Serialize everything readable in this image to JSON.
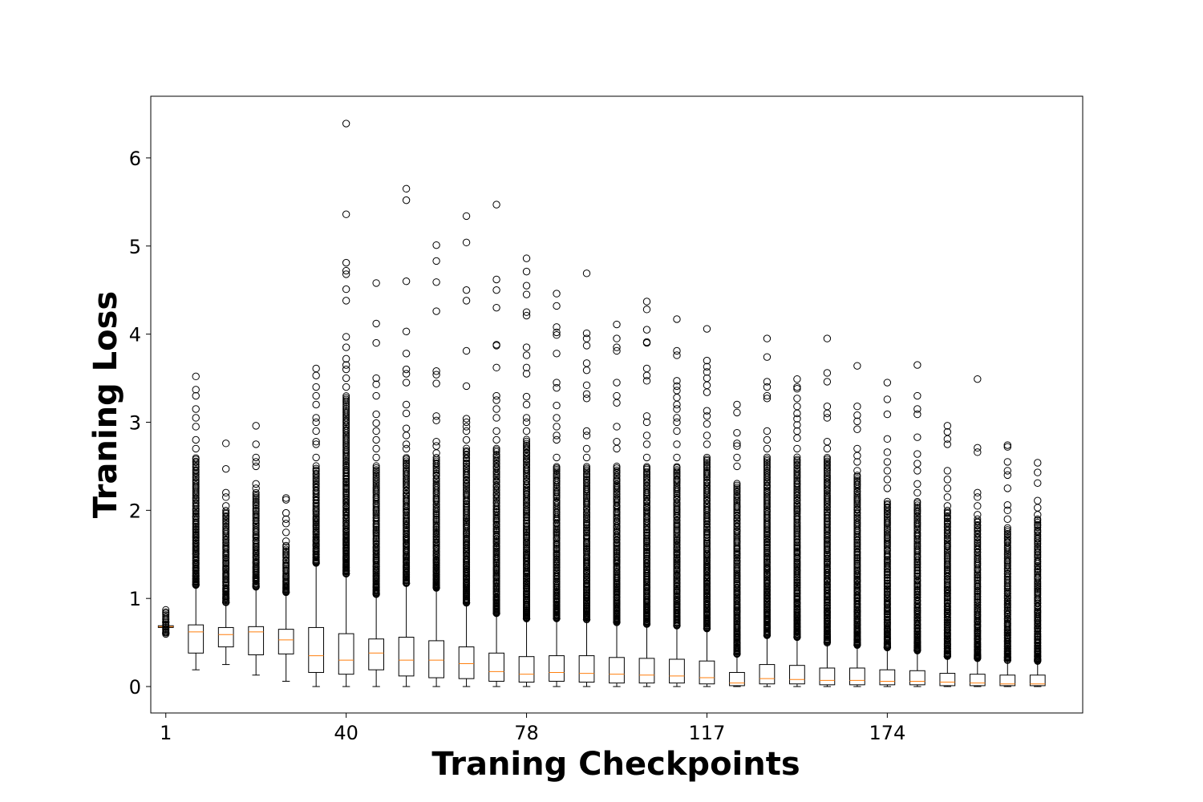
{
  "chart_data": {
    "type": "box",
    "xlabel": "Traning Checkpoints",
    "ylabel": "Traning Loss",
    "ylim": [
      -0.3,
      6.7
    ],
    "yticks": [
      0,
      1,
      2,
      3,
      4,
      5,
      6
    ],
    "xticks": [
      {
        "label": "1",
        "position": 0
      },
      {
        "label": "40",
        "position": 6
      },
      {
        "label": "78",
        "position": 12
      },
      {
        "label": "117",
        "position": 18
      },
      {
        "label": "174",
        "position": 24
      }
    ],
    "grid": false,
    "colors": {
      "box": "#000000",
      "median": "#ff7f0e",
      "outlier": "#000000"
    },
    "series": [
      {
        "position": 1,
        "whislo": 0.6,
        "q1": 0.67,
        "med": 0.68,
        "q3": 0.69,
        "whishi": 0.73,
        "outlier_range": [
          0.6,
          0.87
        ],
        "fliers": []
      },
      {
        "position": 2,
        "whislo": 0.19,
        "q1": 0.38,
        "med": 0.62,
        "q3": 0.7,
        "whishi": 1.15,
        "outlier_range": [
          1.15,
          2.6
        ],
        "fliers": [
          2.7,
          2.8,
          2.95,
          3.05,
          3.15,
          3.3,
          3.37,
          3.52
        ]
      },
      {
        "position": 3,
        "whislo": 0.25,
        "q1": 0.45,
        "med": 0.59,
        "q3": 0.67,
        "whishi": 0.95,
        "outlier_range": [
          0.95,
          2.0
        ],
        "fliers": [
          2.05,
          2.15,
          2.2,
          2.47,
          2.76
        ]
      },
      {
        "position": 4,
        "whislo": 0.13,
        "q1": 0.36,
        "med": 0.62,
        "q3": 0.68,
        "whishi": 1.13,
        "outlier_range": [
          1.13,
          2.2
        ],
        "fliers": [
          2.25,
          2.3,
          2.5,
          2.55,
          2.6,
          2.75,
          2.96
        ]
      },
      {
        "position": 5,
        "whislo": 0.06,
        "q1": 0.37,
        "med": 0.53,
        "q3": 0.65,
        "whishi": 1.07,
        "outlier_range": [
          1.07,
          1.6
        ],
        "fliers": [
          1.65,
          1.75,
          1.85,
          1.9,
          1.97,
          2.12,
          2.14
        ]
      },
      {
        "position": 6,
        "whislo": 0.0,
        "q1": 0.16,
        "med": 0.35,
        "q3": 0.67,
        "whishi": 1.4,
        "outlier_range": [
          1.4,
          2.5
        ],
        "fliers": [
          2.6,
          2.75,
          2.78,
          2.9,
          3.0,
          3.05,
          3.2,
          3.3,
          3.4,
          3.53,
          3.61
        ]
      },
      {
        "position": 7,
        "whislo": 0.0,
        "q1": 0.14,
        "med": 0.3,
        "q3": 0.6,
        "whishi": 1.28,
        "outlier_range": [
          1.28,
          3.3
        ],
        "fliers": [
          3.4,
          3.5,
          3.6,
          3.65,
          3.72,
          3.85,
          3.97,
          4.38,
          4.51,
          4.68,
          4.72,
          4.81,
          5.36,
          6.39
        ]
      },
      {
        "position": 8,
        "whislo": 0.0,
        "q1": 0.19,
        "med": 0.38,
        "q3": 0.54,
        "whishi": 1.05,
        "outlier_range": [
          1.05,
          2.5
        ],
        "fliers": [
          2.6,
          2.7,
          2.8,
          2.9,
          2.99,
          3.09,
          3.3,
          3.43,
          3.5,
          3.9,
          4.12,
          4.58
        ]
      },
      {
        "position": 9,
        "whislo": 0.0,
        "q1": 0.12,
        "med": 0.3,
        "q3": 0.56,
        "whishi": 1.17,
        "outlier_range": [
          1.17,
          2.6
        ],
        "fliers": [
          2.7,
          2.75,
          2.85,
          2.93,
          3.1,
          3.2,
          3.45,
          3.55,
          3.6,
          3.78,
          4.03,
          4.6,
          5.52,
          5.65
        ]
      },
      {
        "position": 10,
        "whislo": 0.0,
        "q1": 0.1,
        "med": 0.3,
        "q3": 0.52,
        "whishi": 1.12,
        "outlier_range": [
          1.12,
          2.6
        ],
        "fliers": [
          2.65,
          2.73,
          2.78,
          3.02,
          3.07,
          3.44,
          3.54,
          3.58,
          4.26,
          4.59,
          4.83,
          5.01
        ]
      },
      {
        "position": 11,
        "whislo": 0.0,
        "q1": 0.09,
        "med": 0.26,
        "q3": 0.45,
        "whishi": 0.95,
        "outlier_range": [
          0.95,
          2.7
        ],
        "fliers": [
          2.8,
          2.9,
          2.95,
          3.0,
          3.04,
          3.41,
          3.81,
          4.38,
          4.5,
          5.04,
          5.34
        ]
      },
      {
        "position": 12,
        "whislo": 0.0,
        "q1": 0.06,
        "med": 0.17,
        "q3": 0.38,
        "whishi": 0.83,
        "outlier_range": [
          0.83,
          2.7
        ],
        "fliers": [
          2.8,
          2.9,
          3.05,
          3.15,
          3.25,
          3.3,
          3.62,
          3.87,
          3.88,
          4.3,
          4.5,
          4.62,
          5.47
        ]
      },
      {
        "position": 13,
        "whislo": 0.0,
        "q1": 0.05,
        "med": 0.14,
        "q3": 0.34,
        "whishi": 0.77,
        "outlier_range": [
          0.77,
          2.8
        ],
        "fliers": [
          2.9,
          3.0,
          3.05,
          3.2,
          3.29,
          3.55,
          3.62,
          3.76,
          3.85,
          4.21,
          4.25,
          4.45,
          4.55,
          4.71,
          4.86
        ]
      },
      {
        "position": 14,
        "whislo": 0.0,
        "q1": 0.06,
        "med": 0.16,
        "q3": 0.35,
        "whishi": 0.77,
        "outlier_range": [
          0.77,
          2.5
        ],
        "fliers": [
          2.6,
          2.8,
          2.85,
          2.95,
          3.05,
          3.19,
          3.39,
          3.45,
          3.78,
          3.99,
          4.02,
          4.08,
          4.32,
          4.46
        ]
      },
      {
        "position": 15,
        "whislo": 0.0,
        "q1": 0.05,
        "med": 0.15,
        "q3": 0.35,
        "whishi": 0.76,
        "outlier_range": [
          0.76,
          2.5
        ],
        "fliers": [
          2.6,
          2.7,
          2.85,
          2.9,
          3.27,
          3.32,
          3.42,
          3.59,
          3.67,
          3.87,
          3.95,
          4.01,
          4.69
        ]
      },
      {
        "position": 16,
        "whislo": 0.0,
        "q1": 0.04,
        "med": 0.14,
        "q3": 0.33,
        "whishi": 0.73,
        "outlier_range": [
          0.73,
          2.5
        ],
        "fliers": [
          2.7,
          2.78,
          2.95,
          3.22,
          3.3,
          3.45,
          3.81,
          3.85,
          3.95,
          4.11
        ]
      },
      {
        "position": 17,
        "whislo": 0.0,
        "q1": 0.04,
        "med": 0.13,
        "q3": 0.32,
        "whishi": 0.71,
        "outlier_range": [
          0.71,
          2.5
        ],
        "fliers": [
          2.6,
          2.75,
          2.85,
          3.0,
          3.07,
          3.47,
          3.53,
          3.61,
          3.9,
          3.91,
          4.05,
          4.28,
          4.37
        ]
      },
      {
        "position": 18,
        "whislo": 0.0,
        "q1": 0.04,
        "med": 0.12,
        "q3": 0.31,
        "whishi": 0.69,
        "outlier_range": [
          0.69,
          2.5
        ],
        "fliers": [
          2.6,
          2.75,
          2.9,
          3.0,
          3.05,
          3.15,
          3.2,
          3.28,
          3.36,
          3.41,
          3.47,
          3.76,
          3.81,
          4.17
        ]
      },
      {
        "position": 19,
        "whislo": 0.0,
        "q1": 0.03,
        "med": 0.1,
        "q3": 0.29,
        "whishi": 0.66,
        "outlier_range": [
          0.66,
          2.6
        ],
        "fliers": [
          2.75,
          2.85,
          2.98,
          3.07,
          3.13,
          3.34,
          3.42,
          3.5,
          3.57,
          3.63,
          3.7,
          4.06
        ]
      },
      {
        "position": 20,
        "whislo": 0.0,
        "q1": 0.01,
        "med": 0.04,
        "q3": 0.16,
        "whishi": 0.37,
        "outlier_range": [
          0.37,
          2.3
        ],
        "fliers": [
          2.5,
          2.6,
          2.73,
          2.76,
          2.88,
          3.11,
          3.2
        ]
      },
      {
        "position": 21,
        "whislo": 0.0,
        "q1": 0.03,
        "med": 0.09,
        "q3": 0.25,
        "whishi": 0.58,
        "outlier_range": [
          0.58,
          2.6
        ],
        "fliers": [
          2.7,
          2.8,
          2.9,
          3.27,
          3.3,
          3.4,
          3.46,
          3.74,
          3.95
        ]
      },
      {
        "position": 22,
        "whislo": 0.0,
        "q1": 0.03,
        "med": 0.08,
        "q3": 0.24,
        "whishi": 0.56,
        "outlier_range": [
          0.56,
          2.6
        ],
        "fliers": [
          2.7,
          2.82,
          2.9,
          2.97,
          3.04,
          3.1,
          3.18,
          3.27,
          3.38,
          3.4,
          3.49
        ]
      },
      {
        "position": 23,
        "whislo": 0.0,
        "q1": 0.02,
        "med": 0.07,
        "q3": 0.21,
        "whishi": 0.5,
        "outlier_range": [
          0.5,
          2.6
        ],
        "fliers": [
          2.7,
          2.78,
          3.05,
          3.1,
          3.18,
          3.46,
          3.56,
          3.95
        ]
      },
      {
        "position": 24,
        "whislo": 0.0,
        "q1": 0.02,
        "med": 0.07,
        "q3": 0.21,
        "whishi": 0.47,
        "outlier_range": [
          0.47,
          2.4
        ],
        "fliers": [
          2.45,
          2.55,
          2.62,
          2.7,
          2.92,
          3.01,
          3.08,
          3.18,
          3.64
        ]
      },
      {
        "position": 25,
        "whislo": 0.0,
        "q1": 0.02,
        "med": 0.06,
        "q3": 0.19,
        "whishi": 0.44,
        "outlier_range": [
          0.44,
          2.1
        ],
        "fliers": [
          2.25,
          2.35,
          2.45,
          2.55,
          2.66,
          2.81,
          3.09,
          3.26,
          3.45
        ]
      },
      {
        "position": 26,
        "whislo": 0.0,
        "q1": 0.02,
        "med": 0.06,
        "q3": 0.18,
        "whishi": 0.41,
        "outlier_range": [
          0.41,
          2.1
        ],
        "fliers": [
          2.2,
          2.3,
          2.45,
          2.53,
          2.64,
          2.83,
          3.09,
          3.15,
          3.3,
          3.65
        ]
      },
      {
        "position": 27,
        "whislo": 0.0,
        "q1": 0.01,
        "med": 0.05,
        "q3": 0.15,
        "whishi": 0.34,
        "outlier_range": [
          0.34,
          2.0
        ],
        "fliers": [
          2.05,
          2.15,
          2.25,
          2.35,
          2.45,
          2.75,
          2.81,
          2.89,
          2.96
        ]
      },
      {
        "position": 28,
        "whislo": 0.0,
        "q1": 0.01,
        "med": 0.04,
        "q3": 0.14,
        "whishi": 0.32,
        "outlier_range": [
          0.32,
          1.9
        ],
        "fliers": [
          1.95,
          2.05,
          2.15,
          2.2,
          2.66,
          2.71,
          3.49
        ]
      },
      {
        "position": 29,
        "whislo": 0.0,
        "q1": 0.01,
        "med": 0.03,
        "q3": 0.13,
        "whishi": 0.3,
        "outlier_range": [
          0.3,
          1.8
        ],
        "fliers": [
          1.9,
          2.0,
          2.06,
          2.25,
          2.4,
          2.45,
          2.55,
          2.72,
          2.74
        ]
      },
      {
        "position": 30,
        "whislo": 0.0,
        "q1": 0.01,
        "med": 0.03,
        "q3": 0.13,
        "whishi": 0.29,
        "outlier_range": [
          0.29,
          1.9
        ],
        "fliers": [
          1.95,
          2.03,
          2.11,
          2.31,
          2.43,
          2.54
        ]
      }
    ]
  }
}
